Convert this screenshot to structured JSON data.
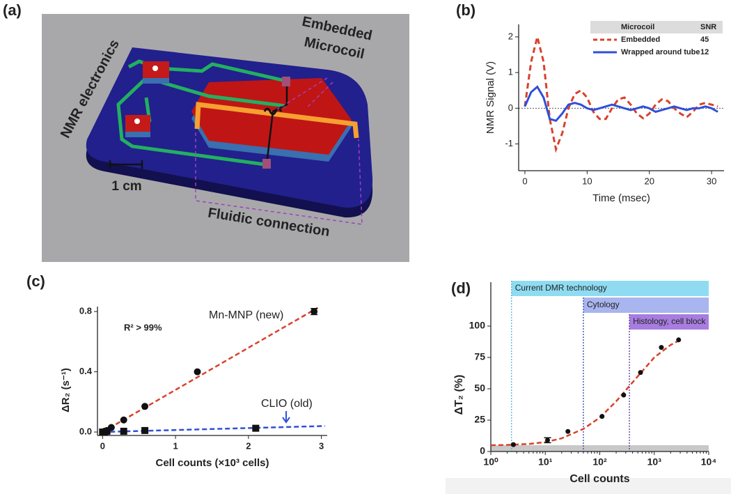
{
  "panels": [
    "(a)",
    "(b)",
    "(c)",
    "(d)"
  ],
  "diagram": {
    "electronics": "NMR electronics",
    "microcoil": [
      "Embedded",
      "Microcoil"
    ],
    "scale": "1 cm",
    "fluidic": "Fluidic connection"
  },
  "chart_data": [
    {
      "type": "line",
      "xlabel": "Time (msec)",
      "ylabel": "NMR Signal (V)",
      "x": [
        0,
        1,
        2,
        3,
        4,
        5,
        6,
        7,
        8,
        9,
        10,
        11,
        12,
        13,
        14,
        15,
        16,
        17,
        18,
        19,
        20,
        21,
        22,
        23,
        24,
        25,
        26,
        27,
        28,
        29,
        30,
        31
      ],
      "series": [
        {
          "name": "Embedded",
          "color": "#d9412b",
          "dash": true,
          "values": [
            0.05,
            1.3,
            2.0,
            1.3,
            -0.3,
            -1.15,
            -0.7,
            0.0,
            0.4,
            0.5,
            0.3,
            -0.1,
            -0.3,
            -0.3,
            0.0,
            0.25,
            0.3,
            0.1,
            -0.15,
            -0.28,
            -0.15,
            0.1,
            0.25,
            0.2,
            0.0,
            -0.15,
            -0.25,
            -0.1,
            0.1,
            0.15,
            0.1,
            0.05
          ]
        },
        {
          "name": "Wrapped around tube",
          "color": "#2f4fd8",
          "values": [
            0.05,
            0.45,
            0.6,
            0.3,
            -0.3,
            -0.35,
            -0.15,
            0.1,
            0.15,
            0.1,
            0.0,
            -0.05,
            0.0,
            0.05,
            0.1,
            0.05,
            0.0,
            -0.05,
            0.0,
            0.05,
            0.0,
            -0.1,
            -0.05,
            0.0,
            0.05,
            0.0,
            -0.05,
            0.0,
            0.0,
            0.05,
            0.0,
            -0.1
          ]
        }
      ],
      "legend": {
        "title": "Microcoil",
        "value_title": "SNR",
        "values": [
          45,
          12
        ]
      },
      "legend_position": "upper right",
      "zero_line": true,
      "xlim": [
        -1,
        32
      ],
      "ylim": [
        -1.75,
        2.35
      ],
      "xticks": [
        0,
        10,
        20,
        30
      ],
      "yticks": [
        -1,
        0,
        1,
        2
      ]
    },
    {
      "type": "scatter",
      "xlabel": "Cell counts (×10³ cells)",
      "ylabel": "ΔR₂ (s⁻¹)",
      "annotations": [
        "R² > 99%"
      ],
      "series": [
        {
          "name": "Mn-MNP (new)",
          "color": "#d9412b",
          "marker": "circle",
          "x": [
            0,
            0.03,
            0.06,
            0.12,
            0.29,
            0.58,
            1.3,
            2.9
          ],
          "values": [
            0,
            0.005,
            0.01,
            0.03,
            0.08,
            0.17,
            0.4,
            0.8
          ],
          "errors": [
            null,
            null,
            null,
            null,
            null,
            null,
            null,
            0.02
          ],
          "fit": {
            "x": [
              0,
              2.95
            ],
            "y": [
              0,
              0.825
            ]
          }
        },
        {
          "name": "CLIO (old)",
          "color": "#2f4fd8",
          "marker": "square",
          "x": [
            0,
            0.03,
            0.06,
            0.29,
            0.58,
            2.1
          ],
          "values": [
            0,
            0,
            0.005,
            0.005,
            0.01,
            0.025
          ],
          "fit": {
            "x": [
              0,
              3.05
            ],
            "y": [
              0,
              0.04
            ]
          }
        }
      ],
      "xlim": [
        -0.07,
        3.08
      ],
      "ylim": [
        -0.023,
        0.833
      ],
      "xticks": [
        0,
        1,
        2,
        3
      ],
      "yticks": [
        {
          "value": 0,
          "label": "0.0"
        },
        {
          "value": 0.4,
          "label": "0.4"
        },
        {
          "value": 0.8,
          "label": "0.8"
        }
      ]
    },
    {
      "type": "scatter",
      "xscale": "log",
      "xlabel": "Cell counts",
      "ylabel": "ΔT₂ (%)",
      "series": [
        {
          "color": "#111111",
          "marker": "circle",
          "x": [
            2.6,
            11,
            26,
            110,
            275,
            560,
            1350,
            2800
          ],
          "values": [
            5.5,
            9,
            16,
            28,
            45,
            63,
            83,
            89
          ],
          "errors": [
            null,
            2,
            null,
            null,
            null,
            null,
            null,
            null
          ],
          "fit": {
            "x": [
              1,
              2,
              5,
              10,
              20,
              50,
              100,
              200,
              500,
              1000,
              2000,
              3000
            ],
            "y": [
              5,
              5.2,
              6,
              7.5,
              10.5,
              18,
              27,
              40,
              60,
              75,
              85,
              89
            ]
          },
          "fit_color": "#d9412b"
        }
      ],
      "ranges": [
        {
          "label": "Current DMR technology",
          "from": 2.4,
          "color": "#8fdcf2",
          "line": "#4fb3d9"
        },
        {
          "label": "Cytology",
          "from": 50,
          "color": "#a9b5ee",
          "line": "#2f3fb0"
        },
        {
          "label": "Histology, cell block",
          "from": 350,
          "color": "#a77de0",
          "line": "#5b2ba0"
        }
      ],
      "floor_band": [
        0,
        5
      ],
      "xlim": [
        1,
        10000
      ],
      "ylim": [
        0,
        135
      ],
      "xticks": [
        {
          "value": 1,
          "label": "10⁰"
        },
        {
          "value": 10,
          "label": "10¹"
        },
        {
          "value": 100,
          "label": "10²"
        },
        {
          "value": 1000,
          "label": "10³"
        },
        {
          "value": 10000,
          "label": "10⁴"
        }
      ],
      "yticks": [
        0,
        25,
        50,
        75,
        100
      ]
    }
  ]
}
